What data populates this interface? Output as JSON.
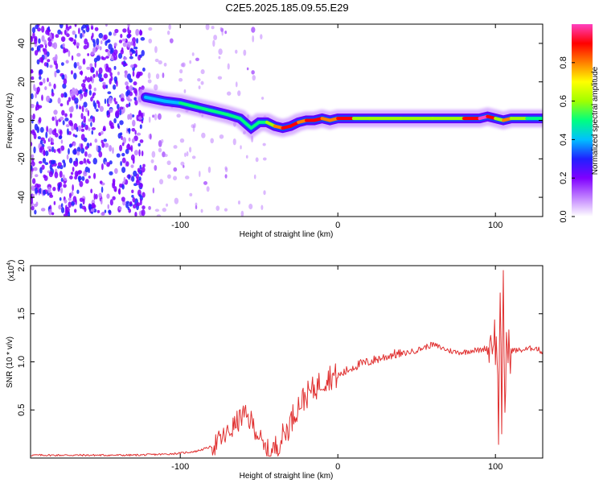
{
  "title": "C2E5.2025.185.09.55.E29",
  "chart_data": [
    {
      "type": "heatmap",
      "xlabel": "Height of straight line (km)",
      "ylabel": "Frequency (Hz)",
      "xlim": [
        -195,
        130
      ],
      "ylim": [
        -50,
        50
      ],
      "xticks": [
        -100,
        0,
        100
      ],
      "xtick_labels": [
        "-100",
        "0",
        "100"
      ],
      "yticks": [
        -40,
        -20,
        0,
        20,
        40
      ],
      "ytick_labels": [
        "-40",
        "-20",
        "0",
        "20",
        "40"
      ],
      "colorbar": {
        "label": "Normalized spectral amplitude",
        "range": [
          0,
          1
        ],
        "ticks": [
          0.0,
          0.2,
          0.4,
          0.6,
          0.8
        ],
        "tick_labels": [
          "0.0",
          "0.2",
          "0.4",
          "0.6",
          "0.8"
        ],
        "colors": [
          "#ffffff",
          "#c080ff",
          "#8000ff",
          "#2020ff",
          "#00c0ff",
          "#00ff80",
          "#a0ff00",
          "#ffff00",
          "#ff8000",
          "#ff0000",
          "#ff40c0"
        ]
      },
      "ridge": {
        "x": [
          -122,
          -110,
          -100,
          -90,
          -80,
          -70,
          -62,
          -55,
          -50,
          -45,
          -40,
          -35,
          -30,
          -25,
          -20,
          -15,
          -10,
          -5,
          0,
          10,
          20,
          40,
          60,
          80,
          90,
          95,
          100,
          105,
          110,
          120,
          130
        ],
        "y": [
          12,
          10,
          9,
          7,
          5,
          3,
          1,
          -4,
          -1,
          -1,
          -3,
          -4,
          -3,
          -1,
          0,
          0,
          1,
          0,
          1,
          1,
          1,
          1,
          1,
          1,
          1,
          2,
          1,
          0,
          1,
          1,
          1
        ],
        "amplitude": [
          0.35,
          0.4,
          0.45,
          0.45,
          0.5,
          0.5,
          0.5,
          0.45,
          0.5,
          0.55,
          0.75,
          0.9,
          0.85,
          0.8,
          0.85,
          0.9,
          0.8,
          0.75,
          0.9,
          0.6,
          0.55,
          0.55,
          0.6,
          0.9,
          0.95,
          0.85,
          0.6,
          0.8,
          0.55,
          0.5,
          0.45
        ]
      }
    },
    {
      "type": "line",
      "xlabel": "Height of straight line (km)",
      "ylabel": "SNR (10 * v/v)",
      "multiplier_label": "(x10",
      "multiplier_exp": "4",
      "xlim": [
        -195,
        130
      ],
      "ylim": [
        0,
        2.0
      ],
      "xticks": [
        -100,
        0,
        100
      ],
      "xtick_labels": [
        "-100",
        "0",
        "100"
      ],
      "yticks": [
        0.5,
        1.0,
        1.5,
        2.0
      ],
      "ytick_labels": [
        "0.5",
        "1.0",
        "1.5",
        "2.0"
      ],
      "color": "#e03030",
      "series": [
        {
          "x": [
            -195,
            -170,
            -150,
            -130,
            -110,
            -100,
            -90,
            -80,
            -75,
            -70,
            -65,
            -60,
            -55,
            -52,
            -50,
            -48,
            -46,
            -44,
            -42,
            -40,
            -38,
            -36,
            -34,
            -32,
            -30,
            -28,
            -25,
            -20,
            -15,
            -10,
            -5,
            0,
            5,
            10,
            15,
            20,
            25,
            30,
            35,
            40,
            45,
            50,
            55,
            60,
            65,
            70,
            75,
            80,
            85,
            90,
            95,
            97,
            99,
            101,
            102,
            103,
            104,
            105,
            106,
            107,
            108,
            110,
            115,
            120,
            125,
            130
          ],
          "y": [
            0.03,
            0.03,
            0.03,
            0.03,
            0.04,
            0.05,
            0.07,
            0.12,
            0.18,
            0.25,
            0.35,
            0.45,
            0.38,
            0.3,
            0.2,
            0.12,
            0.08,
            0.05,
            0.06,
            0.1,
            0.15,
            0.2,
            0.25,
            0.3,
            0.38,
            0.45,
            0.55,
            0.65,
            0.72,
            0.8,
            0.85,
            0.85,
            0.9,
            0.95,
            0.98,
            1.0,
            1.03,
            1.05,
            1.08,
            1.08,
            1.1,
            1.12,
            1.15,
            1.18,
            1.15,
            1.12,
            1.1,
            1.1,
            1.12,
            1.12,
            1.15,
            1.2,
            1.3,
            1.1,
            0.3,
            1.9,
            0.08,
            1.8,
            0.5,
            1.2,
            1.1,
            1.12,
            1.12,
            1.13,
            1.15,
            1.1
          ]
        }
      ]
    }
  ]
}
